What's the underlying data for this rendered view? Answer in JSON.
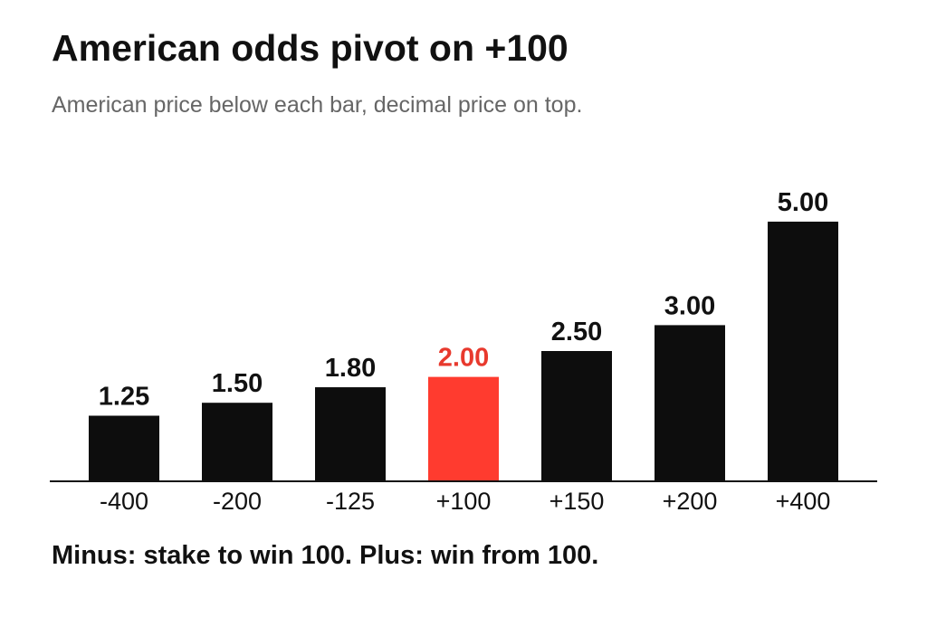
{
  "colors": {
    "bar": "#0d0d0d",
    "highlight": "#ff3b2f",
    "highlight_label": "#e8392d",
    "label": "#111111",
    "axis": "#111111"
  },
  "chart_data": {
    "type": "bar",
    "title": "American odds pivot on +100",
    "subtitle": "American price below each bar, decimal price on top.",
    "footnote": "Minus: stake to win 100. Plus: win from 100.",
    "categories": [
      "-400",
      "-200",
      "-125",
      "+100",
      "+150",
      "+200",
      "+400"
    ],
    "values": [
      1.25,
      1.5,
      1.8,
      2.0,
      2.5,
      3.0,
      5.0
    ],
    "value_labels": [
      "1.25",
      "1.50",
      "1.80",
      "2.00",
      "2.50",
      "3.00",
      "5.00"
    ],
    "highlight_category": "+100",
    "xlabel": "",
    "ylabel": "",
    "ylim": [
      0,
      5.6
    ],
    "grid": false,
    "legend": "none"
  }
}
